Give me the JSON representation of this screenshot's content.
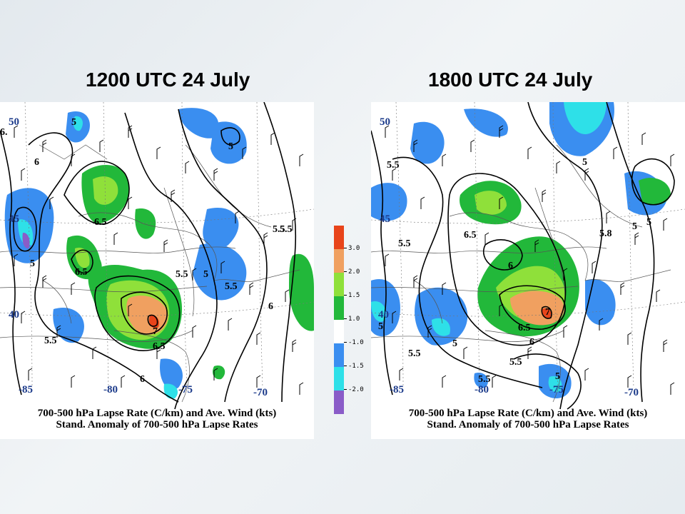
{
  "titles": {
    "left": "1200 UTC 24 July",
    "right": "1800 UTC 24 July"
  },
  "captions": {
    "line1": "700-500 hPa Lapse Rate (C/km) and Ave. Wind (kts)",
    "line2": "Stand. Anomaly of 700-500 hPa Lapse Rates"
  },
  "colorbar": {
    "ticks": [
      "3.0",
      "2.0",
      "1.5",
      "1.0",
      "-1.0",
      "-1.5",
      "-2.0"
    ],
    "colors": [
      "#e8441a",
      "#f0a060",
      "#8fe03a",
      "#22b83a",
      "#ffffff",
      "#3a8ef0",
      "#2ee0e8",
      "#8a5cc8"
    ]
  },
  "left_map": {
    "lat_labels": [
      "50",
      "45",
      "40"
    ],
    "lon_labels": [
      "-85",
      "-80",
      "-75",
      "-70"
    ],
    "contour_labels": [
      "5",
      "5",
      "6",
      "6.5",
      "6.5",
      "5",
      "5.5",
      "5",
      "5.5",
      "5.5",
      "6",
      "7",
      "6.5",
      "5.5",
      "6",
      "6.",
      "5.5"
    ]
  },
  "right_map": {
    "lat_labels": [
      "50",
      "45",
      "40"
    ],
    "lon_labels": [
      "-85",
      "-80",
      "-75",
      "-70"
    ],
    "contour_labels": [
      "5.5",
      "5",
      "6.5",
      "5.5",
      "6",
      "5.8",
      "5",
      "7",
      "6.5",
      "6",
      "5",
      "5.5",
      "5.5",
      "5.5",
      "5",
      "5",
      "5"
    ]
  }
}
